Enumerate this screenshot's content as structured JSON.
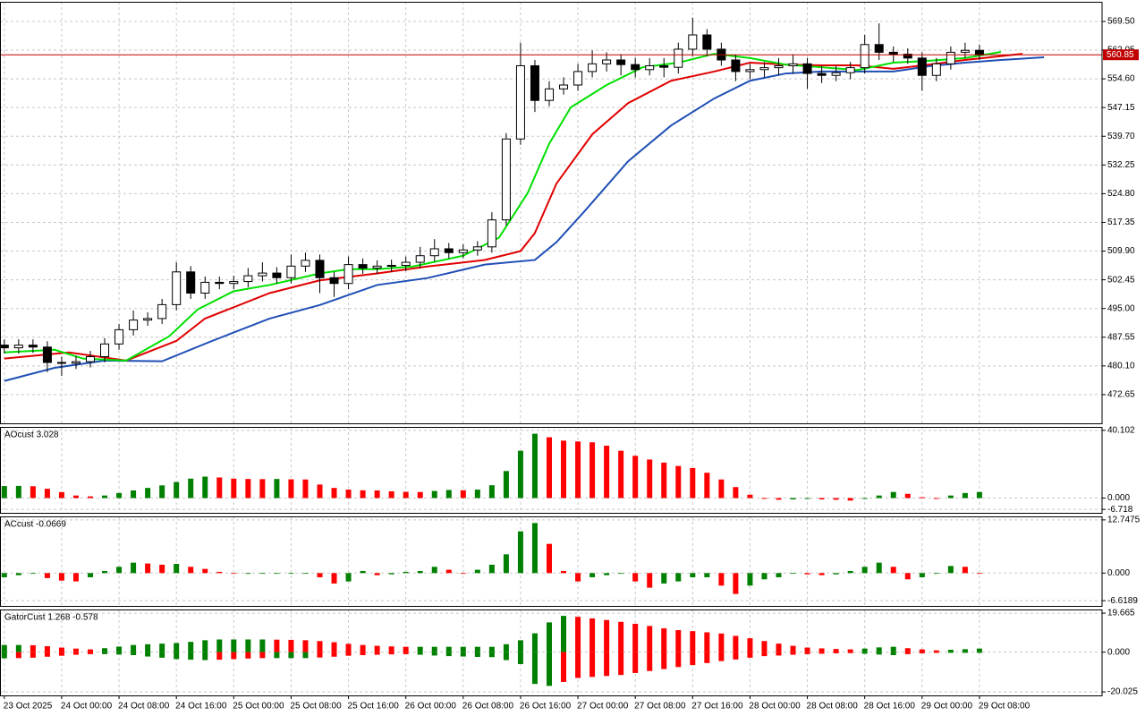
{
  "chart_data": [
    {
      "type": "candlestick",
      "x": [
        0,
        2,
        4,
        6,
        8,
        10,
        12,
        14,
        16,
        18,
        20,
        22,
        24,
        26,
        28,
        30,
        32,
        34,
        36,
        38,
        40,
        42,
        44,
        46,
        48,
        50,
        52,
        54,
        56,
        58,
        60,
        62,
        64,
        66,
        68,
        70,
        72,
        74,
        76,
        78,
        80,
        82,
        84,
        86,
        88,
        90,
        92,
        94,
        96,
        98,
        100,
        102,
        104,
        106,
        108,
        110,
        112,
        114,
        116,
        118,
        120,
        122,
        124,
        126,
        128,
        130,
        132,
        134,
        136
      ],
      "open": [
        485.5,
        484.8,
        485.5,
        485.0,
        481.0,
        480.8,
        481.2,
        482.5,
        485.8,
        489.5,
        492.0,
        492.4,
        496.0,
        504.5,
        499.0,
        501.8,
        501.5,
        502.0,
        503.5,
        504.2,
        503.0,
        506.0,
        507.5,
        503.0,
        501.5,
        506.4,
        505.5,
        506.0,
        506.2,
        507.0,
        508.7,
        510.5,
        509.5,
        510.2,
        511.0,
        518.0,
        539.0,
        558.0,
        549.0,
        552.0,
        553.0,
        556.5,
        558.5,
        559.5,
        558.3,
        557.0,
        558.0,
        557.6,
        562.3,
        566.0,
        562.3,
        559.5,
        556.5,
        557.0,
        557.5,
        558.0,
        558.5,
        556.0,
        555.5,
        556.2,
        557.5,
        563.5,
        561.5,
        561.0,
        560.0,
        555.5,
        558.5,
        561.5,
        562.0
      ],
      "high": [
        487.0,
        487.0,
        487.0,
        486.5,
        482.5,
        482.7,
        484.0,
        487.3,
        491.0,
        494.5,
        494.0,
        497.5,
        507.0,
        506.0,
        503.3,
        503.3,
        503.5,
        505.5,
        507.0,
        505.7,
        509.0,
        509.5,
        509.0,
        504.5,
        508.5,
        508.0,
        507.5,
        507.7,
        508.5,
        511.0,
        513.0,
        512.0,
        511.7,
        512.5,
        520.0,
        540.5,
        564.0,
        559.5,
        554.0,
        555.0,
        558.5,
        562.0,
        561.5,
        561.0,
        560.0,
        560.0,
        560.0,
        564.0,
        570.5,
        567.5,
        564.0,
        561.0,
        558.5,
        559.0,
        560.0,
        561.0,
        560.0,
        558.0,
        558.0,
        559.0,
        566.0,
        569.0,
        563.0,
        562.5,
        561.5,
        560.0,
        563.0,
        564.0,
        563.5
      ],
      "low": [
        483.3,
        483.3,
        483.5,
        478.5,
        477.5,
        479.3,
        479.7,
        481.0,
        484.3,
        488.0,
        490.5,
        491.0,
        494.5,
        497.5,
        497.5,
        500.0,
        500.0,
        500.5,
        502.0,
        501.5,
        501.5,
        504.5,
        499.0,
        498.0,
        500.0,
        504.0,
        504.0,
        504.5,
        504.7,
        505.5,
        507.2,
        508.0,
        508.0,
        508.7,
        509.5,
        516.5,
        537.5,
        546.0,
        547.5,
        550.5,
        551.5,
        555.0,
        556.5,
        555.5,
        555.0,
        555.5,
        555.0,
        556.0,
        560.5,
        560.5,
        558.0,
        554.0,
        554.5,
        555.0,
        555.5,
        556.0,
        552.0,
        553.5,
        554.0,
        554.5,
        556.0,
        559.5,
        559.0,
        558.5,
        551.5,
        554.0,
        557.0,
        560.0,
        559.5
      ],
      "close": [
        484.8,
        485.5,
        485.0,
        481.0,
        480.8,
        481.2,
        482.5,
        485.8,
        489.5,
        492.0,
        492.4,
        496.0,
        504.5,
        499.0,
        501.8,
        501.5,
        502.0,
        503.5,
        504.2,
        503.0,
        506.0,
        507.5,
        503.0,
        501.5,
        506.4,
        505.5,
        506.0,
        506.2,
        507.0,
        508.7,
        510.5,
        509.5,
        510.2,
        511.0,
        518.0,
        539.0,
        558.0,
        549.0,
        552.0,
        553.0,
        556.5,
        558.5,
        559.5,
        558.3,
        557.0,
        558.0,
        557.6,
        562.3,
        566.0,
        562.3,
        559.5,
        556.5,
        557.0,
        557.5,
        558.0,
        558.5,
        556.0,
        555.5,
        556.2,
        557.5,
        563.5,
        561.5,
        561.0,
        560.0,
        555.5,
        558.5,
        561.5,
        562.0,
        560.85
      ],
      "up_color": "#ffffff",
      "down_color": "#000000",
      "series": [
        {
          "color": "#1f4fb5",
          "x": [
            0,
            7,
            14,
            22,
            29,
            37,
            44,
            52,
            59,
            67,
            74,
            77,
            81,
            87,
            93,
            99,
            104,
            109,
            114,
            119,
            124,
            129,
            134,
            139,
            145
          ],
          "values": [
            476.2,
            479.6,
            481.5,
            481.3,
            486.6,
            492.4,
            495.9,
            501.1,
            502.9,
            506.4,
            507.6,
            512.2,
            520.4,
            533.2,
            542.5,
            549.5,
            554.1,
            556.0,
            556.5,
            556.5,
            556.5,
            557.9,
            558.8,
            559.5,
            560.2
          ]
        },
        {
          "color": "#e00000",
          "x": [
            0,
            9,
            17,
            24,
            28,
            37,
            44,
            52,
            59,
            67,
            72,
            74,
            77,
            82,
            87,
            93,
            99,
            104,
            109,
            114,
            119,
            124,
            129,
            134,
            142
          ],
          "values": [
            482.0,
            483.6,
            481.5,
            486.6,
            492.4,
            499.0,
            502.3,
            504.1,
            505.9,
            507.6,
            509.9,
            514.6,
            527.4,
            540.2,
            548.3,
            554.1,
            556.5,
            558.8,
            558.3,
            558.1,
            558.1,
            557.2,
            558.3,
            559.5,
            561.1
          ]
        },
        {
          "color": "#00e000",
          "x": [
            0,
            7,
            11,
            17,
            23,
            27,
            32,
            37,
            44,
            48,
            52,
            57,
            64,
            69,
            73,
            76,
            79,
            84,
            89,
            94,
            99,
            104,
            109,
            114,
            119,
            124,
            129,
            134,
            139
          ],
          "values": [
            483.6,
            484.3,
            482.0,
            481.5,
            487.8,
            494.8,
            499.5,
            501.1,
            504.1,
            505.2,
            505.2,
            505.9,
            508.7,
            513.4,
            525.0,
            537.8,
            547.2,
            553.0,
            557.6,
            558.8,
            561.1,
            560.0,
            558.3,
            557.6,
            556.9,
            558.8,
            559.3,
            560.0,
            561.6
          ]
        }
      ],
      "xlim": [
        -0.6,
        153.1
      ],
      "xticks": [
        {
          "value": 0,
          "label": "23 Oct 2025"
        },
        {
          "value": 8,
          "label": "24 Oct 00:00"
        },
        {
          "value": 16,
          "label": "24 Oct 08:00"
        },
        {
          "value": 24,
          "label": "24 Oct 16:00"
        },
        {
          "value": 32,
          "label": "25 Oct 00:00"
        },
        {
          "value": 40,
          "label": "25 Oct 08:00"
        },
        {
          "value": 48,
          "label": "25 Oct 16:00"
        },
        {
          "value": 56,
          "label": "26 Oct 00:00"
        },
        {
          "value": 64,
          "label": "26 Oct 08:00"
        },
        {
          "value": 72,
          "label": "26 Oct 16:00"
        },
        {
          "value": 80,
          "label": "27 Oct 00:00"
        },
        {
          "value": 88,
          "label": "27 Oct 08:00"
        },
        {
          "value": 96,
          "label": "27 Oct 16:00"
        },
        {
          "value": 104,
          "label": "28 Oct 00:00"
        },
        {
          "value": 112,
          "label": "28 Oct 08:00"
        },
        {
          "value": 120,
          "label": "28 Oct 16:00"
        },
        {
          "value": 128,
          "label": "29 Oct 00:00"
        },
        {
          "value": 136,
          "label": "29 Oct 08:00"
        }
      ],
      "ylim": [
        465.2,
        574.6
      ],
      "yticks": [
        472.65,
        {
          "value": 480.1,
          "label": "480.10"
        },
        487.55,
        {
          "value": 495,
          "label": "495.00"
        },
        502.45,
        {
          "value": 509.9,
          "label": "509.90"
        },
        517.35,
        {
          "value": 524.8,
          "label": "524.80"
        },
        532.25,
        {
          "value": 539.7,
          "label": "539.70"
        },
        547.15,
        {
          "value": 554.6,
          "label": "554.60"
        },
        562.05,
        {
          "value": 569.5,
          "label": "569.50"
        }
      ],
      "last_price": 560.85,
      "last_price_color": "#c00000",
      "grid": true
    },
    {
      "type": "bar",
      "title": "AOcust 3.028",
      "values": [
        7.1,
        7.2,
        7.0,
        5.5,
        3.5,
        1.5,
        1.0,
        1.5,
        3.0,
        4.5,
        6.0,
        7.5,
        9.5,
        11.5,
        12.7,
        12.2,
        11.5,
        11.3,
        11.2,
        11.3,
        11.1,
        11.0,
        8.0,
        6.0,
        5.0,
        4.6,
        4.5,
        4.0,
        3.7,
        3.6,
        4.2,
        4.8,
        4.6,
        5.0,
        7.6,
        16.0,
        28.0,
        38.1,
        36.0,
        34.0,
        33.5,
        33.0,
        31.0,
        28.0,
        25.0,
        22.8,
        21.0,
        19.0,
        17.8,
        15.0,
        11.0,
        6.5,
        2.0,
        -0.5,
        -1.0,
        -0.8,
        -0.5,
        -0.8,
        -1.0,
        -1.5,
        -0.5,
        1.5,
        3.6,
        2.5,
        0.5,
        -0.5,
        1.5,
        3.0,
        3.6
      ],
      "up_color": "#008000",
      "down_color": "#ff0000",
      "ylim": [
        -8.75,
        42.13
      ],
      "yticks": [
        {
          "value": 0,
          "label": "0.000"
        },
        -6.718,
        40.102
      ],
      "grid": true
    },
    {
      "type": "bar",
      "title": "ACcust -0.0669",
      "values": [
        -1.0,
        -0.5,
        0,
        -1.2,
        -1.8,
        -2.0,
        -1.0,
        0.5,
        1.5,
        2.5,
        2.3,
        2.0,
        2.2,
        1.5,
        1.0,
        0.3,
        0,
        0,
        0,
        0,
        0,
        0,
        -1.0,
        -2.5,
        -2.0,
        0.5,
        -0.5,
        -0.3,
        0.3,
        0.5,
        1.5,
        0.8,
        0,
        0.8,
        2.0,
        4.5,
        10.0,
        12.0,
        7.0,
        0.5,
        -2.0,
        -1.0,
        -0.5,
        0,
        -2.0,
        -3.5,
        -2.5,
        -2.0,
        -1.0,
        -1.0,
        -3.0,
        -5.0,
        -3.0,
        -1.5,
        -1.0,
        0,
        -0.3,
        -0.5,
        -0.3,
        0.5,
        1.5,
        2.5,
        1.5,
        -1.5,
        -1.0,
        0,
        1.7,
        1.5,
        0
      ],
      "up_color": "#008000",
      "down_color": "#ff0000",
      "ylim": [
        -7.87,
        13.58
      ],
      "yticks": [
        {
          "value": 0,
          "label": "0.000"
        },
        -6.6189,
        12.7475
      ],
      "grid": true
    },
    {
      "type": "gator",
      "title": "GatorCust 1.268 -0.578",
      "upper": [
        3.6,
        3.6,
        3.5,
        3.0,
        2.3,
        1.8,
        1.4,
        2.0,
        2.8,
        3.6,
        4.0,
        4.3,
        4.6,
        5.2,
        6.0,
        6.4,
        6.4,
        6.4,
        6.4,
        6.3,
        6.2,
        6.0,
        5.6,
        5.0,
        4.2,
        3.6,
        3.2,
        2.9,
        2.7,
        2.7,
        2.7,
        2.7,
        2.7,
        2.7,
        2.7,
        4.0,
        6.0,
        9.5,
        15.0,
        18.3,
        17.8,
        17.0,
        16.2,
        15.3,
        14.3,
        13.2,
        12.0,
        11.1,
        10.6,
        10.0,
        9.4,
        8.2,
        7.0,
        5.6,
        4.3,
        3.2,
        2.3,
        1.9,
        1.6,
        1.4,
        1.8,
        2.4,
        2.7,
        2.0,
        1.4,
        0.9,
        1.2,
        1.5,
        1.8
      ],
      "lower": [
        -3.1,
        -3.0,
        -2.8,
        -2.3,
        -1.8,
        -1.3,
        -1.0,
        -1.0,
        -1.2,
        -1.5,
        -2.2,
        -2.8,
        -3.5,
        -3.8,
        -4.0,
        -3.8,
        -3.5,
        -3.2,
        -3.0,
        -3.0,
        -3.0,
        -3.0,
        -2.7,
        -2.3,
        -1.8,
        -1.5,
        -1.3,
        -1.1,
        -1.0,
        -1.3,
        -1.7,
        -2.0,
        -2.2,
        -2.4,
        -2.5,
        -4.0,
        -6.0,
        -16.0,
        -17.0,
        -15.0,
        -13.0,
        -12.5,
        -12.0,
        -11.5,
        -10.5,
        -9.5,
        -8.5,
        -7.5,
        -6.5,
        -5.5,
        -4.5,
        -3.7,
        -2.8,
        -2.0,
        -1.7,
        -1.3,
        -1.0,
        -0.8,
        -0.6,
        -0.5,
        -0.8,
        -1.2,
        -1.5,
        -1.0,
        -0.6,
        -0.3,
        -0.3,
        -0.3,
        -0.3
      ],
      "up_color": "#008000",
      "down_color": "#ff0000",
      "ylim": [
        -21.8,
        21.5
      ],
      "yticks": [
        {
          "value": 0,
          "label": "0.000"
        },
        -20.025,
        19.665
      ],
      "grid": true
    }
  ]
}
